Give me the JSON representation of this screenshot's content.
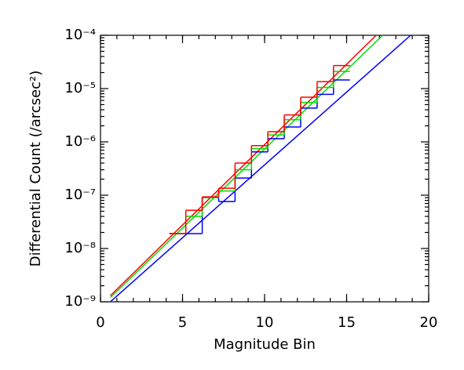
{
  "chart_data": {
    "type": "histogram",
    "log_y": true,
    "x_label": "Magnitude Bin",
    "y_label": "Differential Count (/arcsec²)",
    "xlim": [
      0,
      20
    ],
    "xticks": [
      0,
      5,
      10,
      15,
      20
    ],
    "ylim": [
      1e-09,
      0.0001
    ],
    "yticks": [
      {
        "value": 1e-09,
        "label": "10⁻⁹"
      },
      {
        "value": 1e-08,
        "label": "10⁻⁸"
      },
      {
        "value": 1e-07,
        "label": "10⁻⁷"
      },
      {
        "value": 1e-06,
        "label": "10⁻⁶"
      },
      {
        "value": 1e-05,
        "label": "10⁻⁵"
      },
      {
        "value": 0.0001,
        "label": "10⁻⁴"
      }
    ],
    "series": [
      {
        "color": "#0000ff",
        "bins": [
          4.2,
          5.2,
          6.2,
          7.2,
          8.2,
          9.2,
          10.2,
          11.2,
          12.2,
          13.2,
          14.2,
          15.2
        ],
        "values": [
          1.9e-08,
          1.9e-08,
          9e-08,
          7.6e-08,
          2.1e-07,
          6.5e-07,
          1.15e-06,
          1.9e-06,
          4.3e-06,
          7.8e-06,
          1.45e-05
        ]
      },
      {
        "color": "#00dd00",
        "bins": [
          4.2,
          5.2,
          6.2,
          7.2,
          8.2,
          9.2,
          10.2,
          11.2,
          12.2,
          13.2,
          14.2,
          15.2
        ],
        "values": [
          1.9e-08,
          4e-08,
          9e-08,
          1.2e-07,
          3e-07,
          7.5e-07,
          1.35e-06,
          2.6e-06,
          5.5e-06,
          1.05e-05,
          2.1e-05
        ]
      },
      {
        "color": "#ff0000",
        "bins": [
          4.2,
          5.2,
          6.2,
          7.2,
          8.2,
          9.2,
          10.2,
          11.2,
          12.2,
          13.2,
          14.2,
          15.2
        ],
        "values": [
          1.9e-08,
          5.2e-08,
          9.3e-08,
          1.35e-07,
          4e-07,
          8.5e-07,
          1.55e-06,
          3.2e-06,
          6.9e-06,
          1.35e-05,
          2.7e-05
        ]
      }
    ],
    "fit_lines": [
      {
        "color": "#0000ff",
        "x": [
          0.6,
          18.9
        ],
        "values": [
          1e-09,
          0.0001
        ]
      },
      {
        "color": "#00dd00",
        "x": [
          0.6,
          17.2
        ],
        "values": [
          1.2e-09,
          0.0001
        ]
      },
      {
        "color": "#ff0000",
        "x": [
          0.6,
          16.8
        ],
        "values": [
          1.3e-09,
          0.0001
        ]
      }
    ]
  }
}
